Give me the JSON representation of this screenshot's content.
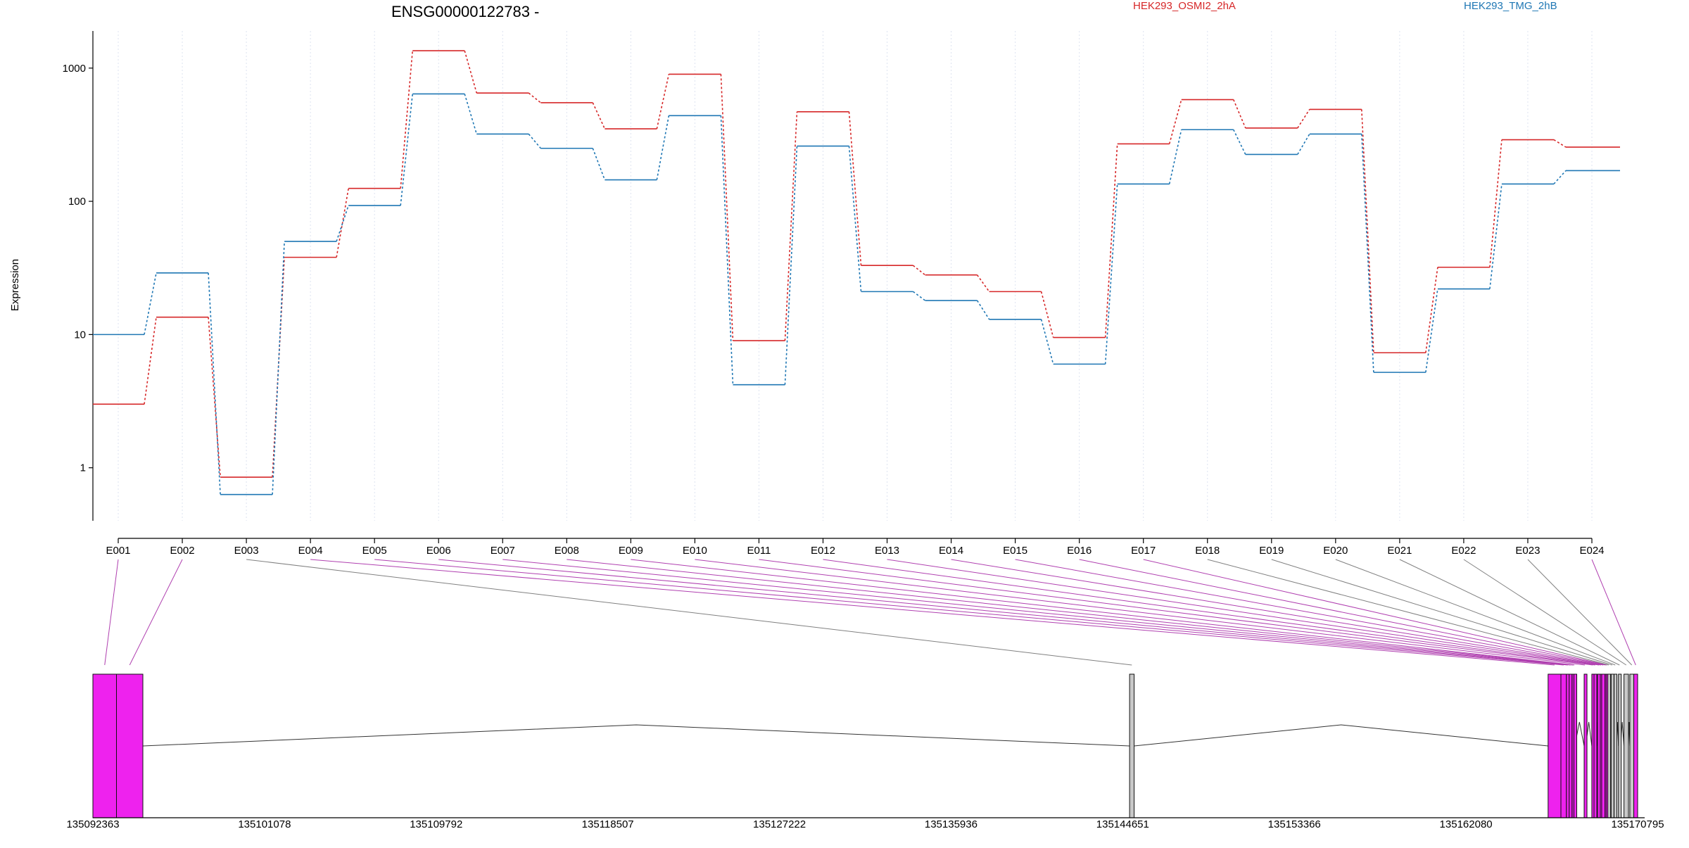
{
  "chart_data": {
    "type": "line",
    "title": "ENSG00000122783 -",
    "ylabel": "Expression",
    "xlabel": "",
    "yscale": "log",
    "ylim": [
      0.4,
      1900
    ],
    "yticks": [
      "1",
      "10",
      "100",
      "1000"
    ],
    "grid": "vertical dotted lines at exons",
    "legend_position": "top",
    "categories": [
      "E001",
      "E002",
      "E003",
      "E004",
      "E005",
      "E006",
      "E007",
      "E008",
      "E009",
      "E010",
      "E011",
      "E012",
      "E013",
      "E014",
      "E015",
      "E016",
      "E017",
      "E018",
      "E019",
      "E020",
      "E021",
      "E022",
      "E023",
      "E024"
    ],
    "series": [
      {
        "name": "HEK293_OSMI2_2hA",
        "color": "#d62728",
        "values": [
          3,
          13.5,
          0.85,
          38,
          125,
          1350,
          650,
          550,
          350,
          900,
          9,
          470,
          33,
          28,
          21,
          9.5,
          270,
          580,
          355,
          490,
          7.3,
          32,
          290,
          255
        ]
      },
      {
        "name": "HEK293_TMG_2hB",
        "color": "#1f77b4",
        "values": [
          10,
          29,
          0.63,
          50,
          93,
          640,
          320,
          250,
          145,
          440,
          4.2,
          260,
          21,
          18,
          13,
          6,
          135,
          345,
          225,
          320,
          5.2,
          22,
          135,
          170
        ]
      }
    ],
    "gene_model": {
      "coord_ticks": [
        "135092363",
        "135101078",
        "135109792",
        "135118507",
        "135127222",
        "135135936",
        "135144651",
        "135153366",
        "135162080",
        "135170795"
      ],
      "exon_fill_highlighted": "#ee22ee",
      "exon_fill_plain": "#c8c8c8",
      "connector_highlighted": "#b040b0",
      "connector_plain": "#808080",
      "exon_highlighted": [
        true,
        true,
        false,
        true,
        true,
        true,
        true,
        true,
        true,
        true,
        true,
        true,
        true,
        true,
        true,
        true,
        true,
        false,
        false,
        false,
        false,
        false,
        false,
        true
      ]
    }
  }
}
